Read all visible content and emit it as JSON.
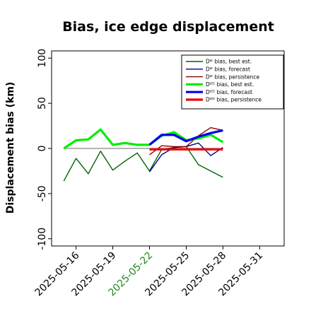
{
  "chart_data": {
    "type": "line",
    "title": "Bias, ice edge displacement",
    "xlabel": "",
    "ylabel": "Displacement bias (km)",
    "ylim": [
      -108,
      108
    ],
    "xlim": [
      "2025-05-14",
      "2025-06-02"
    ],
    "yticks": [
      -100,
      -50,
      0,
      50,
      100
    ],
    "ytick_labels": [
      "-100",
      "-50",
      "0",
      "50",
      "100"
    ],
    "xticks": [
      "2025-05-16",
      "2025-05-19",
      "2025-05-22",
      "2025-05-25",
      "2025-05-28",
      "2025-05-31"
    ],
    "highlight_tick": "2025-05-22",
    "highlight_color": "#228b22",
    "zero_line": true,
    "grid": false,
    "legend_position": "top-right",
    "series": [
      {
        "name": "Dᴵᴱ bias, best est.",
        "color": "#006400",
        "width": 1.4,
        "x": [
          "2025-05-15",
          "2025-05-16",
          "2025-05-17",
          "2025-05-18",
          "2025-05-19",
          "2025-05-20",
          "2025-05-21",
          "2025-05-22",
          "2025-05-23",
          "2025-05-24",
          "2025-05-25",
          "2025-05-26",
          "2025-05-27",
          "2025-05-28"
        ],
        "y": [
          -36,
          -11,
          -28,
          -3,
          -24,
          -14,
          -5,
          -25,
          -1,
          1,
          2,
          -18,
          -25,
          -32
        ]
      },
      {
        "name": "Dᴵᴱ bias, forecast",
        "color": "#00008b",
        "width": 1.4,
        "x": [
          "2025-05-22",
          "2025-05-23",
          "2025-05-24",
          "2025-05-25",
          "2025-05-26",
          "2025-05-27",
          "2025-05-28"
        ],
        "y": [
          -26,
          -7,
          1,
          2,
          6,
          -8,
          1
        ]
      },
      {
        "name": "Dᴵᴱ bias, persistence",
        "color": "#8b0000",
        "width": 1.4,
        "x": [
          "2025-05-22",
          "2025-05-23",
          "2025-05-24",
          "2025-05-25",
          "2025-05-26",
          "2025-05-27",
          "2025-05-28"
        ],
        "y": [
          -7,
          3,
          2,
          2,
          14,
          23,
          20
        ]
      },
      {
        "name": "Dᴵᴱᴱ bias, best est.",
        "color": "#00ee00",
        "width": 3.2,
        "x": [
          "2025-05-15",
          "2025-05-16",
          "2025-05-17",
          "2025-05-18",
          "2025-05-19",
          "2025-05-20",
          "2025-05-21",
          "2025-05-22",
          "2025-05-23",
          "2025-05-24",
          "2025-05-25",
          "2025-05-26",
          "2025-05-27",
          "2025-05-28"
        ],
        "y": [
          0,
          9,
          10,
          21,
          4,
          6,
          4,
          4,
          14,
          18,
          9,
          11,
          15,
          7
        ]
      },
      {
        "name": "Dᴵᴱᴱ bias, forecast",
        "color": "#0000ee",
        "width": 3.2,
        "x": [
          "2025-05-22",
          "2025-05-23",
          "2025-05-24",
          "2025-05-25",
          "2025-05-26",
          "2025-05-27",
          "2025-05-28"
        ],
        "y": [
          4,
          15,
          15,
          8,
          13,
          17,
          20
        ]
      },
      {
        "name": "Dᴵᴱᴱ bias, persistence",
        "color": "#ee0000",
        "width": 3.2,
        "x": [
          "2025-05-22",
          "2025-05-23",
          "2025-05-24",
          "2025-05-25",
          "2025-05-26",
          "2025-05-27",
          "2025-05-28"
        ],
        "y": [
          -1,
          -1,
          -1,
          -1,
          -1,
          -1,
          -1
        ]
      }
    ]
  }
}
